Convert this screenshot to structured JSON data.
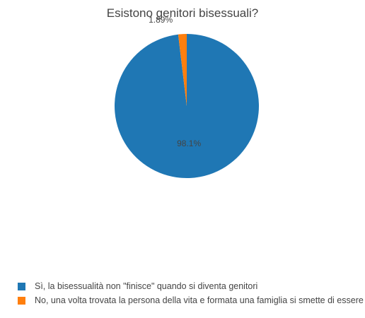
{
  "chart_data": {
    "type": "pie",
    "title": "Esistono genitori bisessuali?",
    "series": [
      {
        "slices": [
          {
            "label": "Sì, la bisessualità non \"finisce\" quando si diventa genitori",
            "value": 98.1,
            "display": "98.1%",
            "color": "#1f77b4"
          },
          {
            "label": "No, una volta trovata la persona della vita e formata una famiglia si smette di essere bisessuali",
            "value": 1.89,
            "display": "1.89%",
            "color": "#ff7f0e"
          }
        ]
      }
    ],
    "legend": {
      "placement": "bottom-left"
    }
  }
}
